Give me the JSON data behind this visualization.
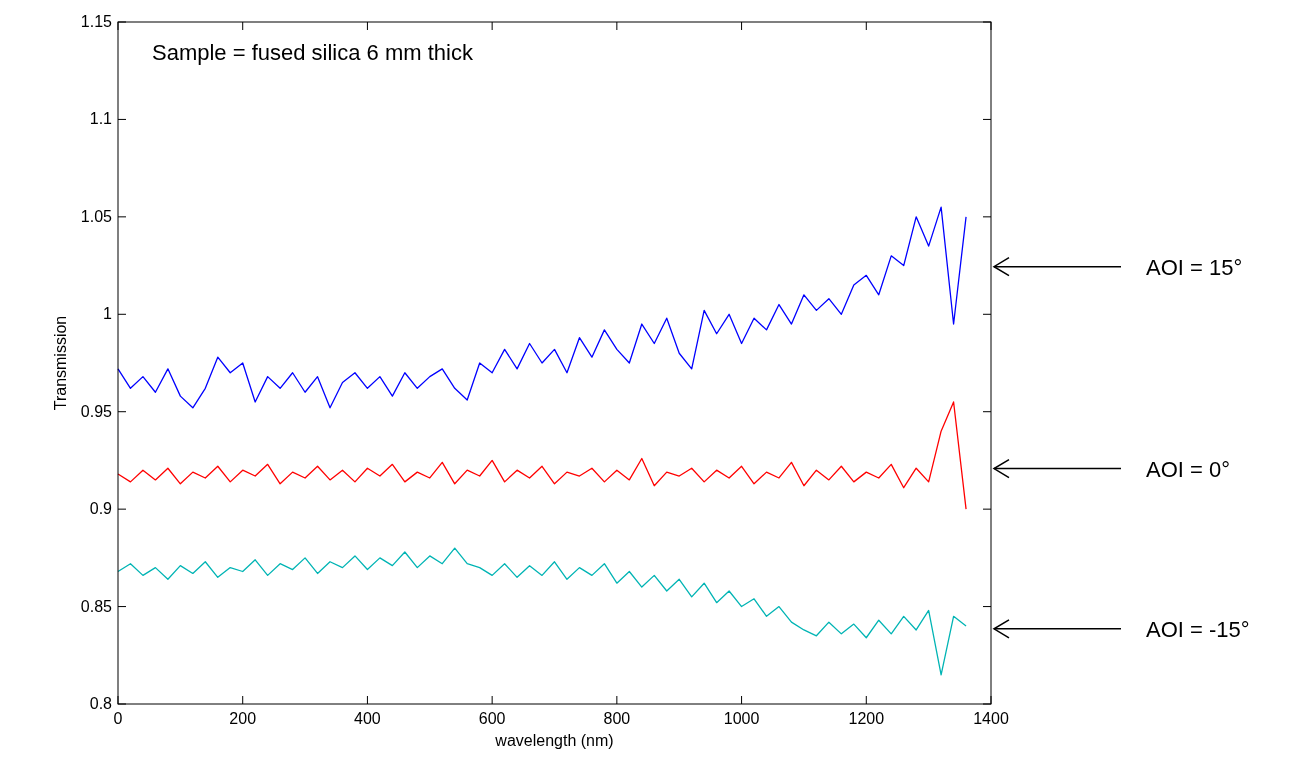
{
  "chart_data": {
    "type": "line",
    "xlabel": "wavelength (nm)",
    "ylabel": "Transmission",
    "xlim": [
      0,
      1400
    ],
    "ylim": [
      0.8,
      1.15
    ],
    "xticks": [
      0,
      200,
      400,
      600,
      800,
      1000,
      1200,
      1400
    ],
    "yticks": [
      0.8,
      0.85,
      0.9,
      0.95,
      1,
      1.05,
      1.1,
      1.15
    ],
    "grid": false,
    "x": [
      0,
      20,
      40,
      60,
      80,
      100,
      120,
      140,
      160,
      180,
      200,
      220,
      240,
      260,
      280,
      300,
      320,
      340,
      360,
      380,
      400,
      420,
      440,
      460,
      480,
      500,
      520,
      540,
      560,
      580,
      600,
      620,
      640,
      660,
      680,
      700,
      720,
      740,
      760,
      780,
      800,
      820,
      840,
      860,
      880,
      900,
      920,
      940,
      960,
      980,
      1000,
      1020,
      1040,
      1060,
      1080,
      1100,
      1120,
      1140,
      1160,
      1180,
      1200,
      1220,
      1240,
      1260,
      1280,
      1300,
      1320,
      1340,
      1360
    ],
    "series": [
      {
        "name": "AOI = 15°",
        "color": "#0000ff",
        "values": [
          0.972,
          0.962,
          0.968,
          0.96,
          0.972,
          0.958,
          0.952,
          0.962,
          0.978,
          0.97,
          0.975,
          0.955,
          0.968,
          0.962,
          0.97,
          0.96,
          0.968,
          0.952,
          0.965,
          0.97,
          0.962,
          0.968,
          0.958,
          0.97,
          0.962,
          0.968,
          0.972,
          0.962,
          0.956,
          0.975,
          0.97,
          0.982,
          0.972,
          0.985,
          0.975,
          0.982,
          0.97,
          0.988,
          0.978,
          0.992,
          0.982,
          0.975,
          0.995,
          0.985,
          0.998,
          0.98,
          0.972,
          1.002,
          0.99,
          1.0,
          0.985,
          0.998,
          0.992,
          1.005,
          0.995,
          1.01,
          1.002,
          1.008,
          1.0,
          1.015,
          1.02,
          1.01,
          1.03,
          1.025,
          1.05,
          1.035,
          1.055,
          0.995,
          1.05
        ]
      },
      {
        "name": "AOI = 0°",
        "color": "#ff0000",
        "values": [
          0.918,
          0.914,
          0.92,
          0.915,
          0.921,
          0.913,
          0.919,
          0.916,
          0.922,
          0.914,
          0.92,
          0.917,
          0.923,
          0.913,
          0.919,
          0.916,
          0.922,
          0.915,
          0.92,
          0.914,
          0.921,
          0.917,
          0.923,
          0.914,
          0.919,
          0.916,
          0.924,
          0.913,
          0.92,
          0.917,
          0.925,
          0.914,
          0.92,
          0.916,
          0.922,
          0.913,
          0.919,
          0.917,
          0.921,
          0.914,
          0.92,
          0.915,
          0.926,
          0.912,
          0.919,
          0.917,
          0.921,
          0.914,
          0.92,
          0.916,
          0.922,
          0.913,
          0.919,
          0.916,
          0.924,
          0.912,
          0.92,
          0.915,
          0.922,
          0.914,
          0.919,
          0.916,
          0.923,
          0.911,
          0.921,
          0.914,
          0.94,
          0.955,
          0.9
        ]
      },
      {
        "name": "AOI = -15°",
        "color": "#00b4b4",
        "values": [
          0.868,
          0.872,
          0.866,
          0.87,
          0.864,
          0.871,
          0.867,
          0.873,
          0.865,
          0.87,
          0.868,
          0.874,
          0.866,
          0.872,
          0.869,
          0.875,
          0.867,
          0.873,
          0.87,
          0.876,
          0.869,
          0.875,
          0.871,
          0.878,
          0.87,
          0.876,
          0.872,
          0.88,
          0.872,
          0.87,
          0.866,
          0.872,
          0.865,
          0.871,
          0.866,
          0.873,
          0.864,
          0.87,
          0.866,
          0.872,
          0.862,
          0.868,
          0.86,
          0.866,
          0.858,
          0.864,
          0.855,
          0.862,
          0.852,
          0.858,
          0.85,
          0.854,
          0.845,
          0.85,
          0.842,
          0.838,
          0.835,
          0.842,
          0.836,
          0.841,
          0.834,
          0.843,
          0.836,
          0.845,
          0.838,
          0.848,
          0.815,
          0.845,
          0.84
        ]
      }
    ],
    "annotations": [
      "Sample = fused silica 6 mm thick"
    ]
  }
}
